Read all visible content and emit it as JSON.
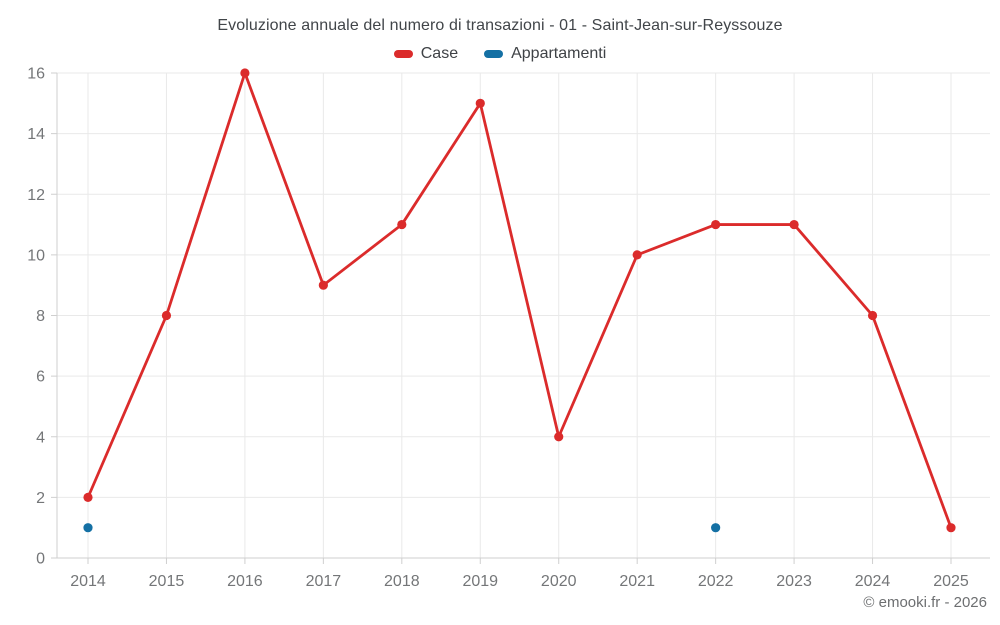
{
  "chart_data": {
    "type": "line",
    "title": "Evoluzione annuale del numero di transazioni - 01 - Saint-Jean-sur-Reyssouze",
    "categories": [
      "2014",
      "2015",
      "2016",
      "2017",
      "2018",
      "2019",
      "2020",
      "2021",
      "2022",
      "2023",
      "2024",
      "2025"
    ],
    "series": [
      {
        "name": "Case",
        "color": "#db2b2b",
        "values": [
          2,
          8,
          16,
          9,
          11,
          15,
          4,
          10,
          11,
          11,
          8,
          1
        ]
      },
      {
        "name": "Appartamenti",
        "color": "#1470a4",
        "values": [
          1,
          null,
          null,
          null,
          null,
          null,
          null,
          null,
          1,
          null,
          null,
          null
        ]
      }
    ],
    "xlabel": "",
    "ylabel": "",
    "ylim": [
      0,
      16
    ],
    "yticks": [
      0,
      2,
      4,
      6,
      8,
      10,
      12,
      14,
      16
    ],
    "grid": true,
    "legend_position": "top",
    "marker": "circle"
  },
  "footer": {
    "copyright": "© emooki.fr - 2026"
  },
  "colors": {
    "grid_line": "#e9e9e9",
    "axis_line": "#cfcfcf",
    "tick_text": "#747678",
    "title_text": "#414549",
    "background": "#ffffff"
  }
}
